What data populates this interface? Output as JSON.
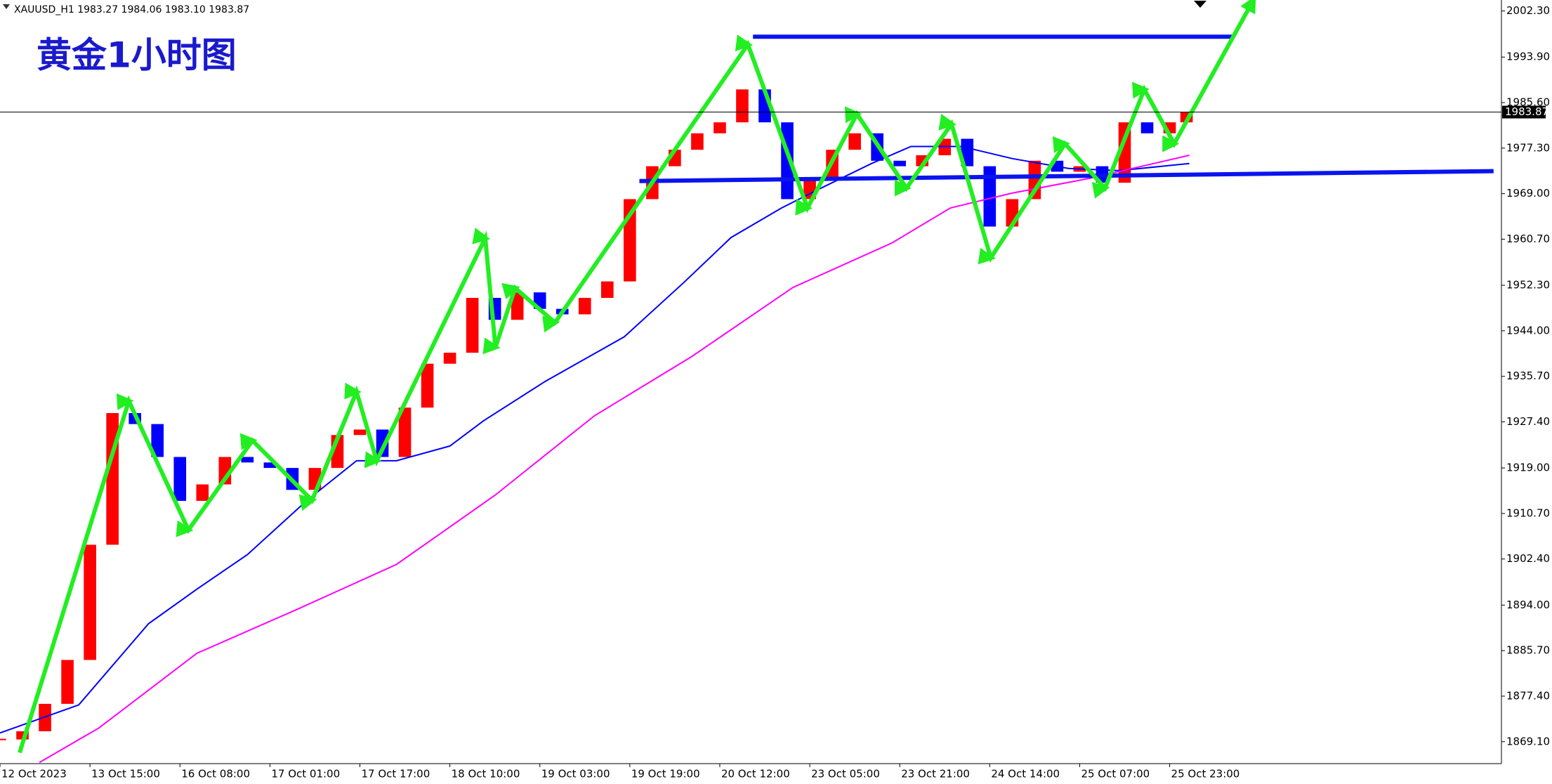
{
  "header": "XAUUSD_H1  1983.27 1984.06 1983.10 1983.87",
  "chart_data": {
    "type": "candlestick",
    "title": "黄金1小时图",
    "x": [
      0,
      4,
      8,
      12,
      16,
      20,
      24,
      28,
      32,
      36,
      40,
      44,
      48,
      52,
      56,
      60,
      64,
      68,
      72,
      76,
      80,
      84,
      88,
      92,
      96,
      100,
      104,
      108,
      112,
      116,
      120,
      124,
      128,
      132,
      136,
      140,
      144,
      148,
      152,
      156,
      160,
      164,
      168,
      172,
      176,
      180,
      184,
      188,
      192,
      196,
      200,
      204,
      208,
      211
    ],
    "values": [
      1869.5,
      1871,
      1876,
      1884,
      1905,
      1929,
      1927,
      1921,
      1913,
      1916,
      1921,
      1920,
      1919,
      1915,
      1919,
      1925,
      1926,
      1921,
      1930,
      1938,
      1940,
      1950,
      1946,
      1951,
      1948,
      1947,
      1950,
      1953,
      1968,
      1974,
      1977,
      1980,
      1982,
      1988,
      1982,
      1968,
      1972,
      1977,
      1980,
      1975,
      1974,
      1976,
      1979,
      1974,
      1963,
      1968,
      1975,
      1973,
      1974,
      1971,
      1982,
      1980,
      1982,
      1983.87
    ],
    "up_color": "#ff0000",
    "down_color": "#0000ff",
    "moving_averages": [
      {
        "color": "#0000ff",
        "x": [
          0,
          14,
          26.4,
          35,
          44,
          54.6,
          63.4,
          70.5,
          80,
          86,
          97,
          111,
          121.6,
          130,
          139,
          146,
          155,
          162,
          171,
          180,
          190,
          199,
          211.5
        ],
        "values": [
          1870.7,
          1875.8,
          1890.6,
          1896.9,
          1903.2,
          1913.1,
          1920.3,
          1920.3,
          1923,
          1927.6,
          1934.8,
          1942.9,
          1952.8,
          1961,
          1966.4,
          1970,
          1974.5,
          1977.6,
          1977.6,
          1975.4,
          1973.6,
          1973.2,
          1974.5
        ]
      },
      {
        "color": "#ff00ff",
        "x": [
          7,
          17.6,
          35,
          53,
          70.5,
          88,
          105.7,
          123,
          141,
          158.6,
          169,
          180,
          193.8,
          211.5
        ],
        "values": [
          1865.3,
          1871.6,
          1885.2,
          1893.3,
          1901.4,
          1914,
          1928.5,
          1939.3,
          1951.9,
          1960,
          1966.4,
          1969.1,
          1971.8,
          1976
        ]
      }
    ],
    "trend_arrows": {
      "color": "#22ee22",
      "x": [
        3.5,
        22.9,
        33.5,
        44.9,
        55.5,
        63.4,
        67,
        86.3,
        88.1,
        91.6,
        98.7,
        133,
        143.6,
        152.4,
        161.2,
        169.2,
        176.2,
        189.4,
        196.5,
        203.5,
        208.8,
        222.9
      ],
      "values": [
        1867.1,
        1931.2,
        1907.7,
        1924,
        1913.1,
        1932.9,
        1920.3,
        1960.9,
        1941,
        1951.8,
        1945.5,
        1996.2,
        1966.4,
        1983.5,
        1970,
        1981.7,
        1957.3,
        1978.1,
        1970,
        1988,
        1978.1,
        2004.3
      ]
    },
    "levels": [
      {
        "color": "#0a14ee",
        "x": [
          133.9,
          219.4
        ],
        "values": [
          1997.6,
          1997.6
        ]
      },
      {
        "color": "#0a14ee",
        "x": [
          113.7,
          265.6
        ],
        "values": [
          1971.3,
          1973.1
        ]
      }
    ],
    "last_price": 1983.87,
    "xlim": [
      0,
      267
    ],
    "xticks": [
      {
        "value": 0,
        "label": "12 Oct 2023"
      },
      {
        "value": 16,
        "label": "13 Oct 15:00"
      },
      {
        "value": 32,
        "label": "16 Oct 08:00"
      },
      {
        "value": 48,
        "label": "17 Oct 01:00"
      },
      {
        "value": 64,
        "label": "17 Oct 17:00"
      },
      {
        "value": 80,
        "label": "18 Oct 10:00"
      },
      {
        "value": 96,
        "label": "19 Oct 03:00"
      },
      {
        "value": 112,
        "label": "19 Oct 19:00"
      },
      {
        "value": 128,
        "label": "20 Oct 12:00"
      },
      {
        "value": 144,
        "label": "23 Oct 05:00"
      },
      {
        "value": 160,
        "label": "23 Oct 21:00"
      },
      {
        "value": 176,
        "label": "24 Oct 14:00"
      },
      {
        "value": 192,
        "label": "25 Oct 07:00"
      },
      {
        "value": 208,
        "label": "25 Oct 23:00"
      }
    ],
    "ylim": [
      1865.1,
      2004.3
    ],
    "yticks": [
      {
        "value": 1869.1,
        "label": "1869.10"
      },
      {
        "value": 1877.4,
        "label": "1877.40"
      },
      {
        "value": 1885.7,
        "label": "1885.70"
      },
      {
        "value": 1894,
        "label": "1894.00"
      },
      {
        "value": 1902.4,
        "label": "1902.40"
      },
      {
        "value": 1910.7,
        "label": "1910.70"
      },
      {
        "value": 1919,
        "label": "1919.00"
      },
      {
        "value": 1927.4,
        "label": "1927.40"
      },
      {
        "value": 1935.7,
        "label": "1935.70"
      },
      {
        "value": 1944,
        "label": "1944.00"
      },
      {
        "value": 1952.3,
        "label": "1952.30"
      },
      {
        "value": 1960.7,
        "label": "1960.70"
      },
      {
        "value": 1969,
        "label": "1969.00"
      },
      {
        "value": 1977.3,
        "label": "1977.30"
      },
      {
        "value": 1985.6,
        "label": "1985.60"
      },
      {
        "value": 1993.9,
        "label": "1993.90"
      },
      {
        "value": 2002.3,
        "label": "2002.30"
      }
    ]
  }
}
